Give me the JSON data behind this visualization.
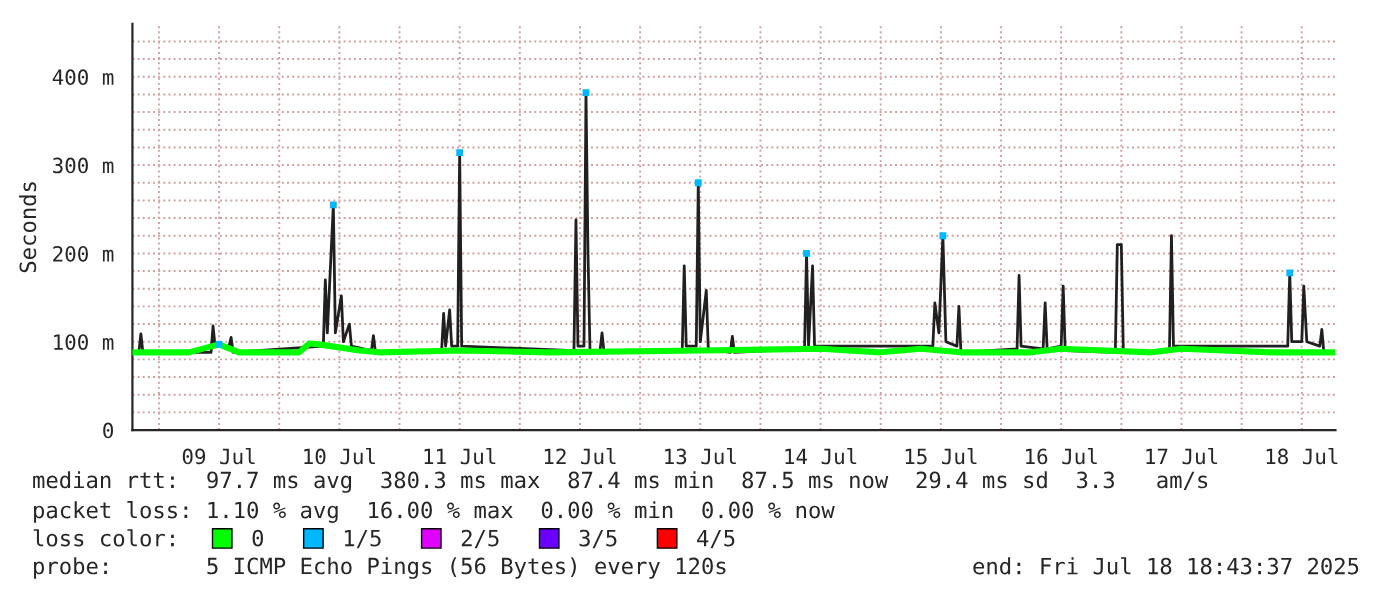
{
  "chart_data": {
    "type": "line",
    "ylabel": "Seconds",
    "annotations": [
      "median rtt:  97.7 ms avg  380.3 ms max  87.4 ms min  87.5 ms now  29.4 ms sd  3.3   am/s",
      "packet loss: 1.10 % avg  16.00 % max  0.00 % min  0.00 % now",
      "loss color:",
      "probe:       5 ICMP Echo Pings (56 Bytes) every 120s",
      "end: Fri Jul 18 18:43:37 2025"
    ],
    "xlim": [
      "2025-07-08T18:43",
      "2025-07-18T18:43"
    ],
    "xticks": [
      {
        "value": "2025-07-09T00:00",
        "label": null
      },
      {
        "value": "2025-07-09T12:00",
        "label": "09 Jul"
      },
      {
        "value": "2025-07-10T00:00",
        "label": null
      },
      {
        "value": "2025-07-10T12:00",
        "label": "10 Jul"
      },
      {
        "value": "2025-07-11T00:00",
        "label": null
      },
      {
        "value": "2025-07-11T12:00",
        "label": "11 Jul"
      },
      {
        "value": "2025-07-12T00:00",
        "label": null
      },
      {
        "value": "2025-07-12T12:00",
        "label": "12 Jul"
      },
      {
        "value": "2025-07-13T00:00",
        "label": null
      },
      {
        "value": "2025-07-13T12:00",
        "label": "13 Jul"
      },
      {
        "value": "2025-07-14T00:00",
        "label": null
      },
      {
        "value": "2025-07-14T12:00",
        "label": "14 Jul"
      },
      {
        "value": "2025-07-15T00:00",
        "label": null
      },
      {
        "value": "2025-07-15T12:00",
        "label": "15 Jul"
      },
      {
        "value": "2025-07-16T00:00",
        "label": null
      },
      {
        "value": "2025-07-16T12:00",
        "label": "16 Jul"
      },
      {
        "value": "2025-07-17T00:00",
        "label": null
      },
      {
        "value": "2025-07-17T12:00",
        "label": "17 Jul"
      },
      {
        "value": "2025-07-18T00:00",
        "label": null
      },
      {
        "value": "2025-07-18T12:00",
        "label": "18 Jul"
      }
    ],
    "ylim": [
      0,
      460
    ],
    "yticks": [
      0,
      {
        "value": 20,
        "label": null
      },
      {
        "value": 40,
        "label": null
      },
      {
        "value": 60,
        "label": null
      },
      {
        "value": 80,
        "label": null
      },
      {
        "value": 100,
        "label": "100 m"
      },
      {
        "value": 120,
        "label": null
      },
      {
        "value": 140,
        "label": null
      },
      {
        "value": 160,
        "label": null
      },
      {
        "value": 180,
        "label": null
      },
      {
        "value": 200,
        "label": "200 m"
      },
      {
        "value": 220,
        "label": null
      },
      {
        "value": 240,
        "label": null
      },
      {
        "value": 260,
        "label": null
      },
      {
        "value": 280,
        "label": null
      },
      {
        "value": 300,
        "label": "300 m"
      },
      {
        "value": 320,
        "label": null
      },
      {
        "value": 340,
        "label": null
      },
      {
        "value": 360,
        "label": null
      },
      {
        "value": 380,
        "label": null
      },
      {
        "value": 400,
        "label": "400 m"
      },
      {
        "value": 420,
        "label": null
      },
      {
        "value": 440,
        "label": null
      }
    ],
    "grid": true,
    "legend": "bottom",
    "series": [
      {
        "color": "#202020",
        "x": [
          "2025-07-08T18:43",
          "2025-07-08T20:00",
          "2025-07-08T20:24",
          "2025-07-08T20:48",
          "2025-07-09T10:24",
          "2025-07-09T10:48",
          "2025-07-09T11:12",
          "2025-07-09T14:00",
          "2025-07-09T14:24",
          "2025-07-09T14:48",
          "2025-07-10T08:48",
          "2025-07-10T09:12",
          "2025-07-10T09:36",
          "2025-07-10T10:48",
          "2025-07-10T11:12",
          "2025-07-10T12:24",
          "2025-07-10T12:48",
          "2025-07-10T14:00",
          "2025-07-10T14:24",
          "2025-07-10T18:24",
          "2025-07-10T18:48",
          "2025-07-10T19:12",
          "2025-07-11T08:24",
          "2025-07-11T08:48",
          "2025-07-11T09:12",
          "2025-07-11T10:00",
          "2025-07-11T10:24",
          "2025-07-11T11:36",
          "2025-07-11T12:00",
          "2025-07-11T12:24",
          "2025-07-12T10:48",
          "2025-07-12T11:12",
          "2025-07-12T11:36",
          "2025-07-12T12:48",
          "2025-07-12T13:12",
          "2025-07-12T13:36",
          "2025-07-12T14:00",
          "2025-07-12T16:00",
          "2025-07-12T16:24",
          "2025-07-12T16:48",
          "2025-07-13T08:24",
          "2025-07-13T08:48",
          "2025-07-13T09:12",
          "2025-07-13T11:12",
          "2025-07-13T11:36",
          "2025-07-13T12:00",
          "2025-07-13T13:12",
          "2025-07-13T13:36",
          "2025-07-13T18:00",
          "2025-07-13T18:24",
          "2025-07-13T18:48",
          "2025-07-14T08:48",
          "2025-07-14T09:12",
          "2025-07-14T09:36",
          "2025-07-14T10:24",
          "2025-07-14T10:48",
          "2025-07-15T10:24",
          "2025-07-15T10:48",
          "2025-07-15T11:36",
          "2025-07-15T12:24",
          "2025-07-15T13:00",
          "2025-07-15T15:12",
          "2025-07-15T15:36",
          "2025-07-15T16:00",
          "2025-07-16T03:12",
          "2025-07-16T03:36",
          "2025-07-16T04:00",
          "2025-07-16T08:24",
          "2025-07-16T08:48",
          "2025-07-16T09:12",
          "2025-07-16T12:00",
          "2025-07-16T12:24",
          "2025-07-16T12:48",
          "2025-07-16T22:48",
          "2025-07-16T23:12",
          "2025-07-17T00:00",
          "2025-07-17T00:24",
          "2025-07-17T09:36",
          "2025-07-17T10:00",
          "2025-07-17T10:24",
          "2025-07-18T09:12",
          "2025-07-18T09:36",
          "2025-07-18T10:00",
          "2025-07-18T12:00",
          "2025-07-18T12:24",
          "2025-07-18T13:00",
          "2025-07-18T15:36",
          "2025-07-18T16:00",
          "2025-07-18T16:24"
        ],
        "values": [
          88,
          88,
          109,
          88,
          88,
          118,
          95,
          95,
          105,
          88,
          95,
          170,
          110,
          255,
          110,
          152,
          100,
          120,
          95,
          90,
          107,
          88,
          90,
          132,
          95,
          136,
          95,
          95,
          314,
          95,
          90,
          238,
          95,
          95,
          382,
          200,
          90,
          90,
          110,
          88,
          90,
          186,
          95,
          95,
          280,
          100,
          158,
          92,
          88,
          106,
          88,
          92,
          200,
          95,
          186,
          95,
          95,
          144,
          110,
          220,
          100,
          95,
          140,
          88,
          92,
          175,
          95,
          92,
          144,
          92,
          95,
          163,
          90,
          88,
          210,
          210,
          88,
          90,
          220,
          95,
          95,
          178,
          100,
          100,
          163,
          100,
          95,
          114,
          88
        ]
      },
      {
        "name": "0",
        "color": "#00ff00",
        "x": [
          "2025-07-08T18:43",
          "2025-07-09T06:00",
          "2025-07-09T12:00",
          "2025-07-09T16:00",
          "2025-07-10T04:00",
          "2025-07-10T06:00",
          "2025-07-10T08:00",
          "2025-07-10T16:00",
          "2025-07-10T20:00",
          "2025-07-11T12:00",
          "2025-07-12T06:00",
          "2025-07-13T12:00",
          "2025-07-14T12:00",
          "2025-07-15T00:00",
          "2025-07-15T08:00",
          "2025-07-15T16:00",
          "2025-07-16T06:00",
          "2025-07-16T12:00",
          "2025-07-17T06:00",
          "2025-07-17T12:00",
          "2025-07-18T06:00",
          "2025-07-18T18:43"
        ],
        "values": [
          88,
          88,
          97,
          88,
          88,
          98,
          97,
          90,
          88,
          90,
          88,
          90,
          92,
          88,
          92,
          88,
          88,
          92,
          88,
          92,
          88,
          88
        ]
      },
      {
        "type": "scatter",
        "name": "1/5",
        "color": "#00b8ff",
        "x": [
          "2025-07-09T12:00",
          "2025-07-10T10:48",
          "2025-07-11T12:00",
          "2025-07-12T13:12",
          "2025-07-13T11:36",
          "2025-07-14T09:12",
          "2025-07-15T12:24",
          "2025-07-18T09:36"
        ],
        "values": [
          97,
          255,
          314,
          382,
          280,
          200,
          220,
          178
        ]
      },
      {
        "type": "scatter",
        "name": "2/5",
        "color": "#e000ff"
      },
      {
        "type": "scatter",
        "name": "3/5",
        "color": "#6a00ff"
      },
      {
        "type": "scatter",
        "name": "4/5",
        "color": "#ff0000"
      }
    ]
  }
}
